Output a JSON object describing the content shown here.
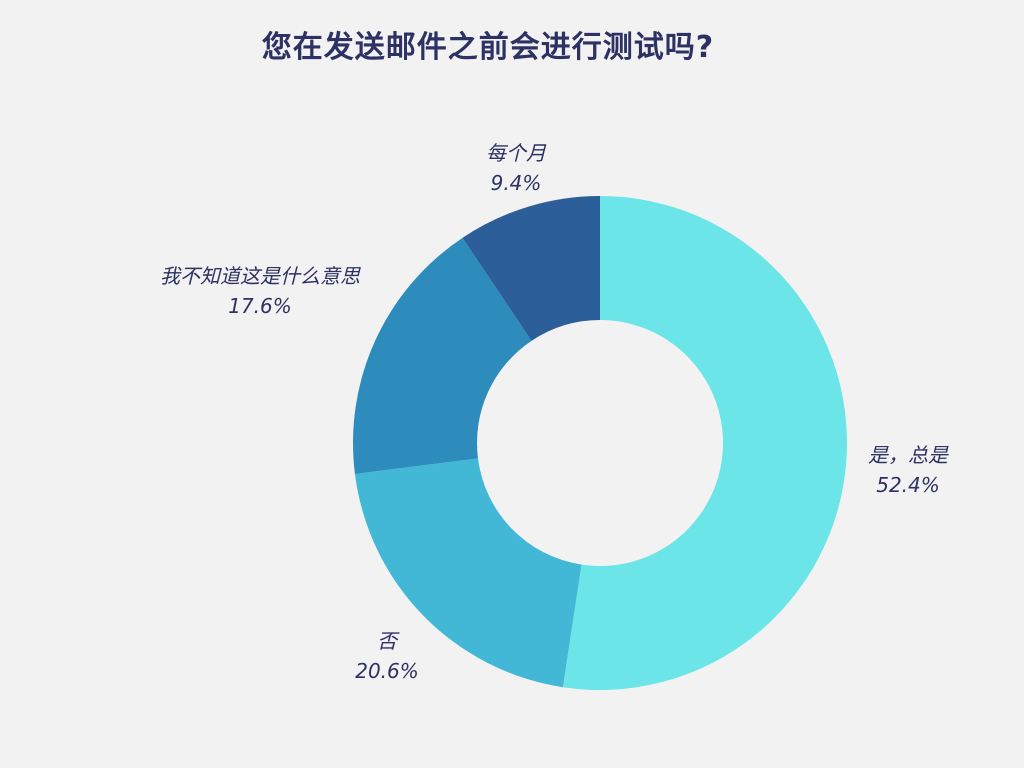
{
  "chart_data": {
    "type": "pie",
    "title": "您在发送邮件之前会进行测试吗?",
    "slices": [
      {
        "label": "是，总是",
        "value": 52.4,
        "value_label": "52.4%",
        "color": "#6be5e8"
      },
      {
        "label": "否",
        "value": 20.6,
        "value_label": "20.6%",
        "color": "#42b8d6"
      },
      {
        "label": "我不知道这是什么意思",
        "value": 17.6,
        "value_label": "17.6%",
        "color": "#2d8cbb"
      },
      {
        "label": "每个月",
        "value": 9.4,
        "value_label": "9.4%",
        "color": "#2c5f99"
      }
    ],
    "donut": true,
    "legend": "none",
    "start_angle": "top, clockwise"
  }
}
